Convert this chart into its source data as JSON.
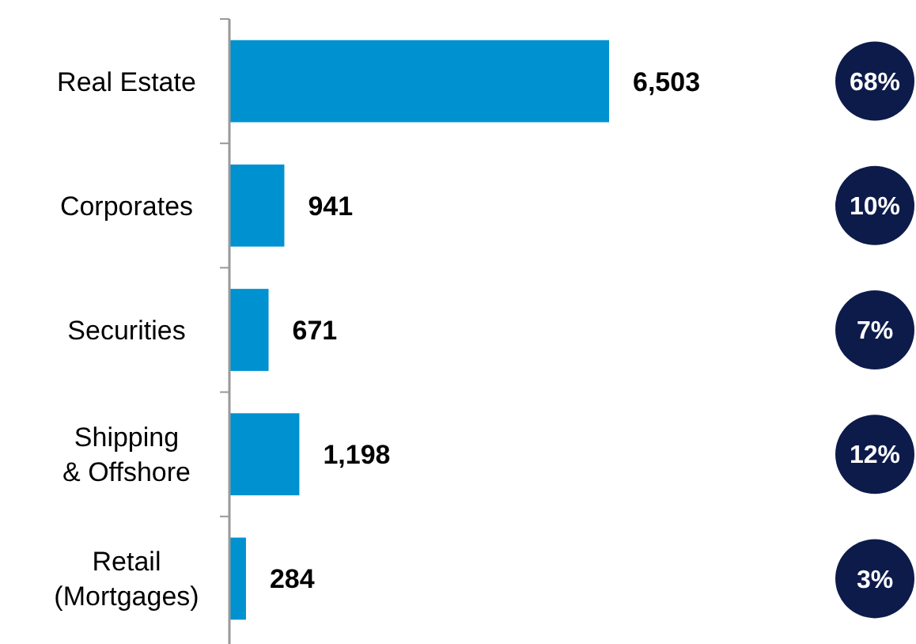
{
  "chart_data": {
    "type": "bar",
    "orientation": "horizontal",
    "categories": [
      "Real Estate",
      "Corporates",
      "Securities",
      "Shipping\n& Offshore",
      "Retail\n(Mortgages)"
    ],
    "values": [
      6503,
      941,
      671,
      1198,
      284
    ],
    "value_labels": [
      "6,503",
      "941",
      "671",
      "1,198",
      "284"
    ],
    "color": "#0092d0",
    "annotations": [
      "68%",
      "10%",
      "7%",
      "12%",
      "3%"
    ]
  }
}
